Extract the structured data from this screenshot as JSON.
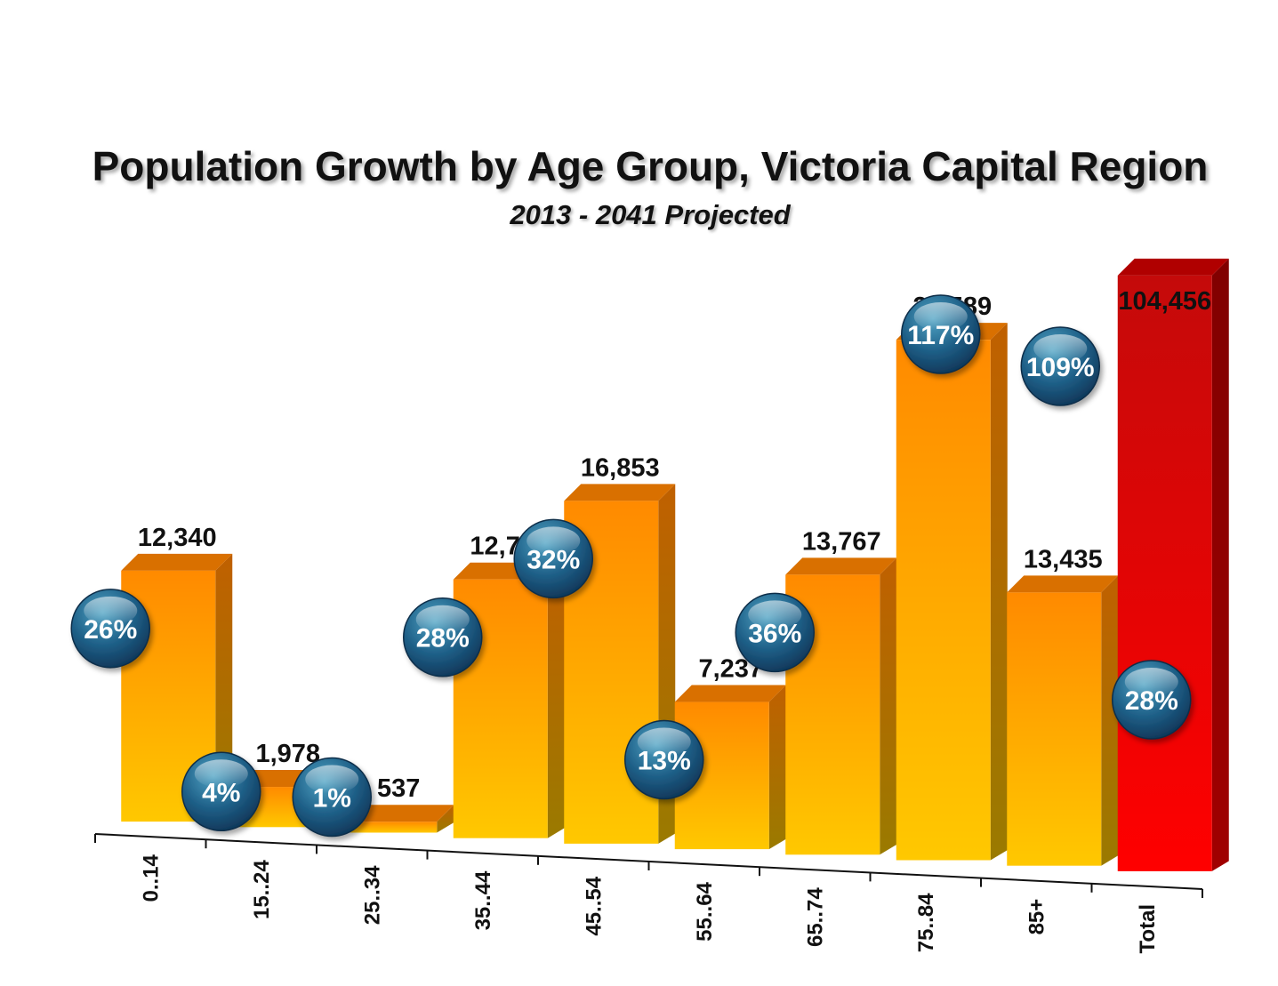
{
  "chart_data": {
    "type": "bar",
    "title": "Population Growth by Age Group, Victoria Capital Region",
    "subtitle": "2013 - 2041 Projected",
    "categories": [
      "0..14",
      "15..24",
      "25..34",
      "35..44",
      "45..54",
      "55..64",
      "65..74",
      "75..84",
      "85+",
      "Total"
    ],
    "values": [
      12340,
      1978,
      537,
      12720,
      16853,
      7237,
      13767,
      25589,
      13435,
      104456
    ],
    "value_labels": [
      "12,340",
      "1,978",
      "537",
      "12,720",
      "16,853",
      "7,237",
      "13,767",
      "25,589",
      "13,435",
      "104,456"
    ],
    "growth_pct": [
      26,
      4,
      1,
      28,
      32,
      13,
      36,
      117,
      109,
      28
    ],
    "growth_labels": [
      "26%",
      "4%",
      "1%",
      "28%",
      "32%",
      "13%",
      "36%",
      "117%",
      "109%",
      "28%"
    ],
    "highlight_category": "Total",
    "colors": {
      "bar_top": "#ff8c00",
      "bar_bottom": "#ffc800",
      "total_top": "#c80c0c",
      "total_bottom": "#ff0000",
      "bubble": "#1e5a8c"
    },
    "grid": false,
    "legend": "none"
  }
}
